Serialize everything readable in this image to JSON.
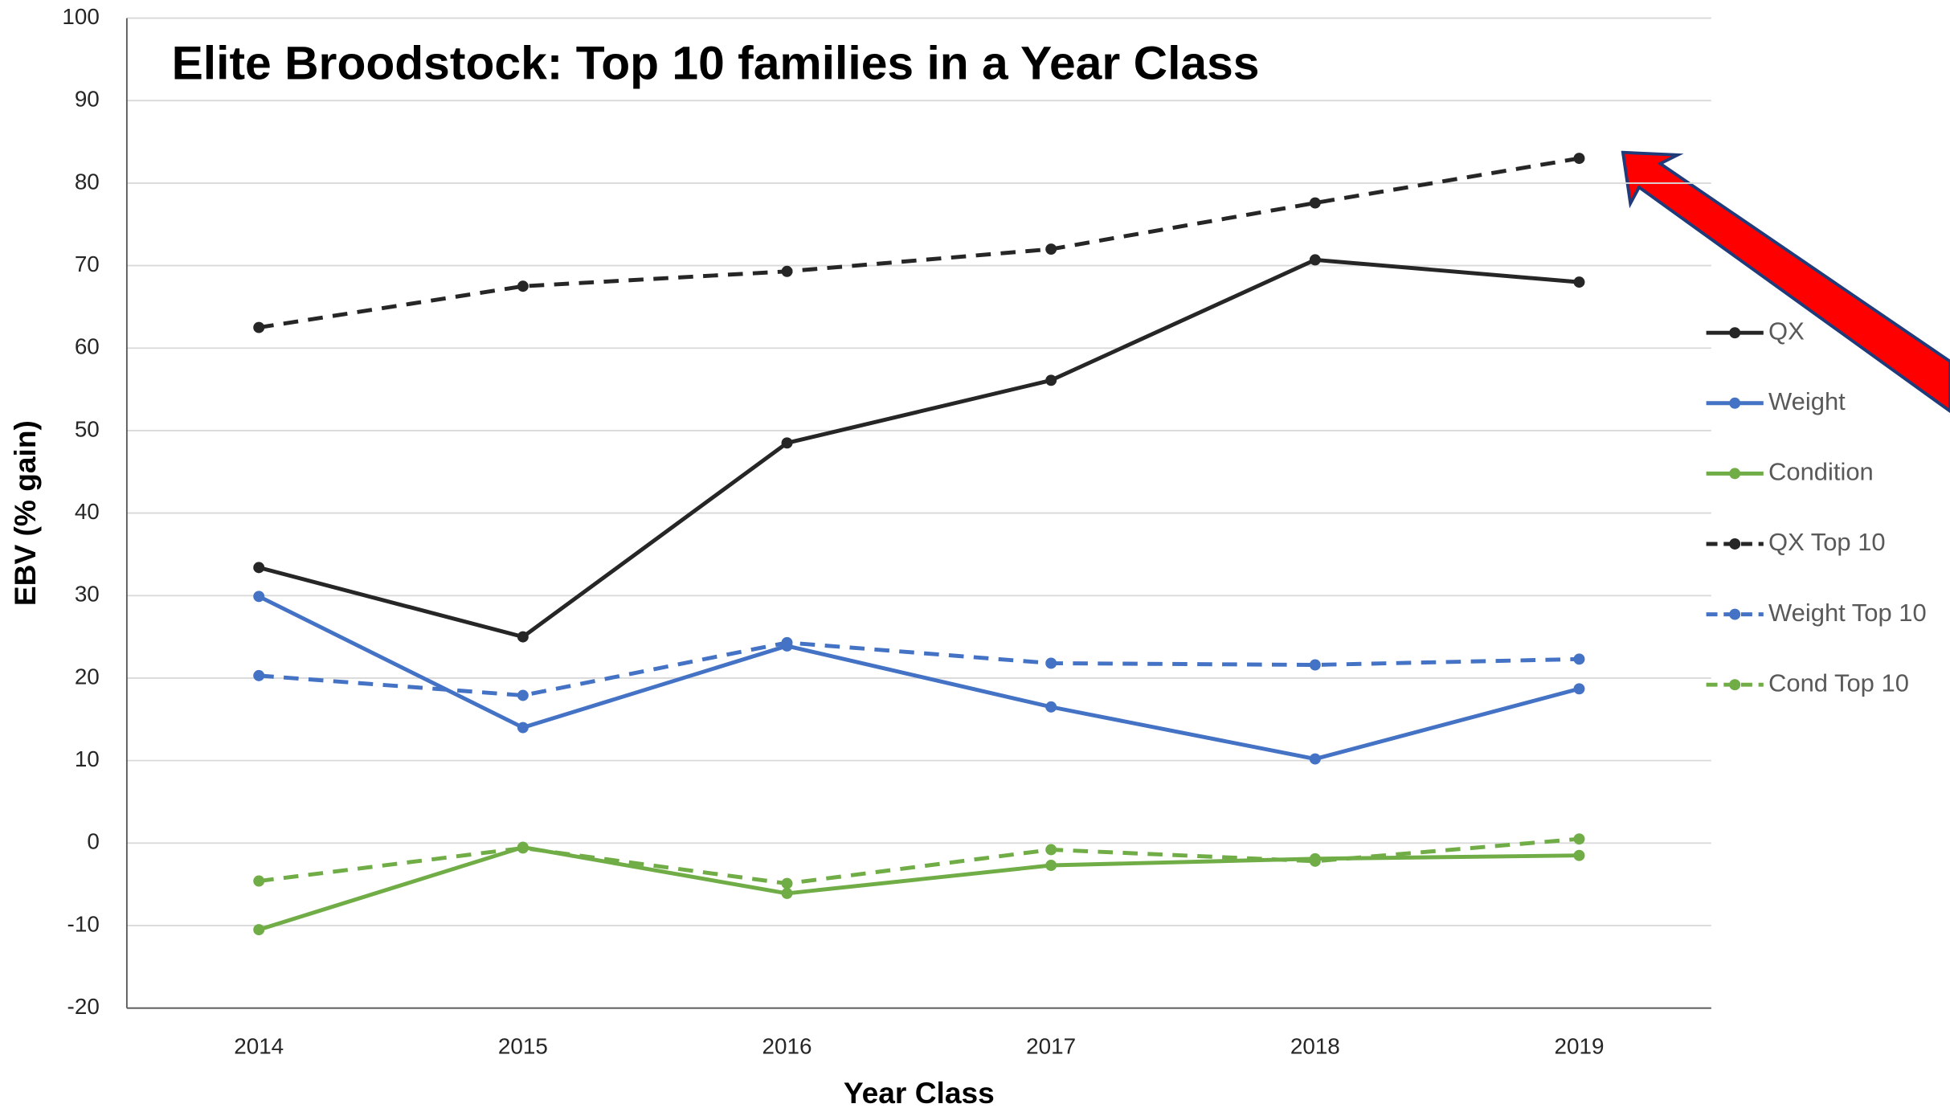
{
  "chart_data": {
    "type": "line",
    "title": "Elite Broodstock: Top 10 families in a Year Class",
    "x_label": "Year Class",
    "y_label": "EBV (% gain)",
    "categories": [
      "2014",
      "2015",
      "2016",
      "2017",
      "2018",
      "2019"
    ],
    "series": [
      {
        "name": "QX",
        "color": "#262626",
        "dashed": false,
        "values": [
          33.4,
          25,
          48.5,
          56.1,
          70.7,
          68
        ]
      },
      {
        "name": "Weight",
        "color": "#4472c4",
        "dashed": false,
        "values": [
          29.9,
          14,
          23.9,
          16.5,
          10.2,
          18.7
        ]
      },
      {
        "name": "Condition",
        "color": "#70ad47",
        "dashed": false,
        "values": [
          -10.5,
          -0.5,
          -6.1,
          -2.7,
          -1.9,
          -1.5
        ]
      },
      {
        "name": "QX Top 10",
        "color": "#262626",
        "dashed": true,
        "values": [
          62.5,
          67.5,
          69.3,
          72,
          77.6,
          83
        ]
      },
      {
        "name": "Weight Top 10",
        "color": "#4472c4",
        "dashed": true,
        "values": [
          20.3,
          17.9,
          24.3,
          21.8,
          21.6,
          22.3
        ]
      },
      {
        "name": "Cond Top 10",
        "color": "#70ad47",
        "dashed": true,
        "values": [
          -4.6,
          -0.6,
          -4.9,
          -0.8,
          -2.2,
          0.5
        ]
      }
    ],
    "ylim": [
      -20,
      100
    ],
    "yticks": [
      -20,
      -10,
      0,
      10,
      20,
      30,
      40,
      50,
      60,
      70,
      80,
      90,
      100
    ],
    "grid": true,
    "legend": "right"
  }
}
